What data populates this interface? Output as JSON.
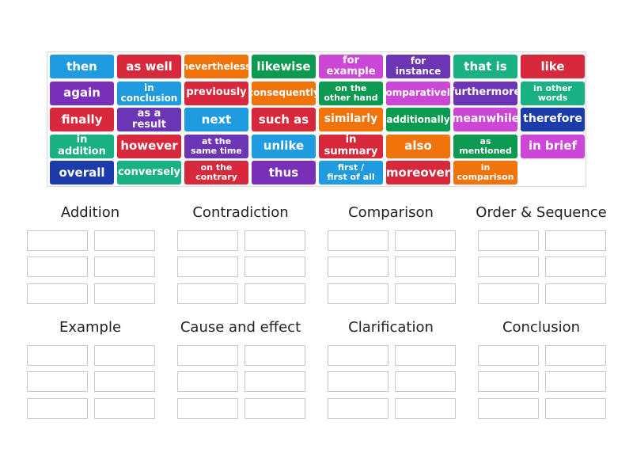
{
  "colors": {
    "blue": "#1f9be0",
    "red": "#d8283b",
    "orange": "#f0730c",
    "green": "#0c9a50",
    "magenta": "#cc47d6",
    "purple": "#6b35b5",
    "navy": "#1b3caa",
    "teal": "#19b083",
    "darkpurple": "#7a2fb8"
  },
  "tiles": [
    {
      "text": "then",
      "color": "blue"
    },
    {
      "text": "as well",
      "color": "red"
    },
    {
      "text": "nevertheless",
      "color": "orange"
    },
    {
      "text": "likewise",
      "color": "green"
    },
    {
      "text": "for example",
      "color": "magenta"
    },
    {
      "text": "for instance",
      "color": "purple"
    },
    {
      "text": "that is",
      "color": "teal"
    },
    {
      "text": "like",
      "color": "red"
    },
    {
      "text": "again",
      "color": "darkpurple"
    },
    {
      "text": "in conclusion",
      "color": "blue"
    },
    {
      "text": "previously",
      "color": "red"
    },
    {
      "text": "consequently",
      "color": "orange"
    },
    {
      "text": "on the\nother hand",
      "color": "green"
    },
    {
      "text": "comparatively",
      "color": "magenta"
    },
    {
      "text": "furthermore",
      "color": "purple"
    },
    {
      "text": "in other\nwords",
      "color": "teal"
    },
    {
      "text": "finally",
      "color": "red"
    },
    {
      "text": "as a result",
      "color": "purple"
    },
    {
      "text": "next",
      "color": "blue"
    },
    {
      "text": "such as",
      "color": "red"
    },
    {
      "text": "similarly",
      "color": "orange"
    },
    {
      "text": "additionally",
      "color": "green"
    },
    {
      "text": "meanwhile",
      "color": "magenta"
    },
    {
      "text": "therefore",
      "color": "navy"
    },
    {
      "text": "in addition",
      "color": "teal"
    },
    {
      "text": "however",
      "color": "red"
    },
    {
      "text": "at the\nsame time",
      "color": "purple"
    },
    {
      "text": "unlike",
      "color": "blue"
    },
    {
      "text": "in summary",
      "color": "red"
    },
    {
      "text": "also",
      "color": "orange"
    },
    {
      "text": "as\nmentioned",
      "color": "green"
    },
    {
      "text": "in brief",
      "color": "magenta"
    },
    {
      "text": "overall",
      "color": "navy"
    },
    {
      "text": "conversely",
      "color": "teal"
    },
    {
      "text": "on the\ncontrary",
      "color": "red"
    },
    {
      "text": "thus",
      "color": "darkpurple"
    },
    {
      "text": "first /\nfirst of all",
      "color": "blue"
    },
    {
      "text": "moreover",
      "color": "red"
    },
    {
      "text": "in\ncomparison",
      "color": "orange"
    }
  ],
  "groups": [
    {
      "title": "Addition"
    },
    {
      "title": "Contradiction"
    },
    {
      "title": "Comparison"
    },
    {
      "title": "Order & Sequence"
    },
    {
      "title": "Example"
    },
    {
      "title": "Cause and effect"
    },
    {
      "title": "Clarification"
    },
    {
      "title": "Conclusion"
    }
  ]
}
